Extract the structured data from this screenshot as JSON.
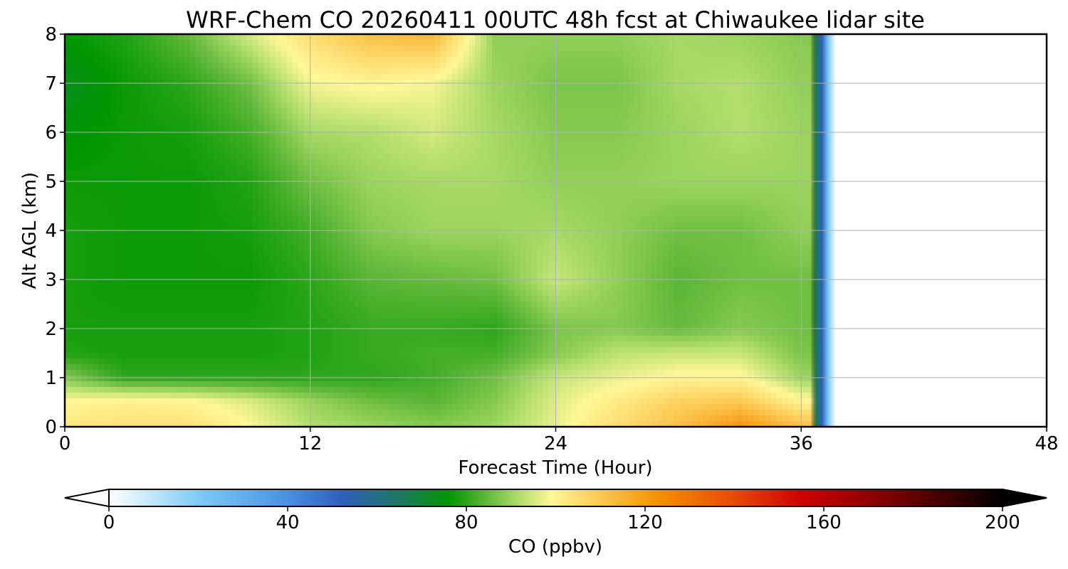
{
  "chart_data": {
    "type": "heatmap",
    "title": "WRF-Chem CO  20260411 00UTC 48h fcst at Chiwaukee lidar site",
    "xlabel": "Forecast Time (Hour)",
    "ylabel": "Alt AGL (km)",
    "xlim": [
      0,
      48
    ],
    "ylim": [
      0,
      8
    ],
    "xticks": [
      "0",
      "12",
      "24",
      "36",
      "48"
    ],
    "yticks": [
      "0",
      "1",
      "2",
      "3",
      "4",
      "5",
      "6",
      "7",
      "8"
    ],
    "grid": true,
    "data_end_hour": 36.8,
    "x_hours": [
      0,
      3,
      6,
      9,
      12,
      15,
      18,
      21,
      24,
      27,
      30,
      33,
      36
    ],
    "z_km": [
      0,
      0.5,
      1,
      1.5,
      2,
      3,
      4,
      5,
      6,
      7,
      8
    ],
    "co_ppbv": [
      [
        103,
        104,
        104,
        99,
        92,
        90,
        88,
        90,
        97,
        105,
        112,
        122,
        112
      ],
      [
        99,
        101,
        100,
        96,
        90,
        86,
        84,
        88,
        96,
        102,
        108,
        110,
        100
      ],
      [
        88,
        80,
        80,
        80,
        80,
        80,
        82,
        86,
        94,
        97,
        100,
        100,
        90
      ],
      [
        79,
        78,
        78,
        78,
        79,
        81,
        82,
        82,
        88,
        93,
        94,
        94,
        87
      ],
      [
        78,
        78,
        78,
        78,
        79,
        81,
        81,
        80,
        87,
        88,
        85,
        88,
        86
      ],
      [
        78,
        77,
        77,
        77,
        80,
        84,
        85,
        86,
        94,
        89,
        84,
        86,
        86
      ],
      [
        78,
        77,
        77,
        78,
        82,
        88,
        90,
        90,
        91,
        89,
        86,
        86,
        89
      ],
      [
        77,
        77,
        77,
        79,
        86,
        90,
        91,
        91,
        89,
        89,
        90,
        90,
        90
      ],
      [
        75,
        77,
        78,
        82,
        91,
        92,
        95,
        91,
        88,
        88,
        90,
        92,
        90
      ],
      [
        73,
        77,
        80,
        86,
        98,
        100,
        98,
        90,
        87,
        87,
        91,
        92,
        89
      ],
      [
        76,
        79,
        85,
        95,
        105,
        112,
        114,
        89,
        89,
        89,
        91,
        90,
        88
      ]
    ],
    "colorbar": {
      "label": "CO  (ppbv)",
      "min": 0,
      "max": 200,
      "ticks": [
        "0",
        "40",
        "80",
        "120",
        "160",
        "200"
      ],
      "extend": "both",
      "stops": [
        {
          "v": 0,
          "c": "#ffffff"
        },
        {
          "v": 20,
          "c": "#7ecbf6"
        },
        {
          "v": 40,
          "c": "#4a90e2"
        },
        {
          "v": 52,
          "c": "#2f5fbd"
        },
        {
          "v": 66,
          "c": "#1b7a5b"
        },
        {
          "v": 76,
          "c": "#009600"
        },
        {
          "v": 84,
          "c": "#5ab537"
        },
        {
          "v": 92,
          "c": "#b2de6e"
        },
        {
          "v": 99,
          "c": "#fff798"
        },
        {
          "v": 110,
          "c": "#fcc851"
        },
        {
          "v": 124,
          "c": "#f68c00"
        },
        {
          "v": 140,
          "c": "#e74a05"
        },
        {
          "v": 155,
          "c": "#cf0000"
        },
        {
          "v": 175,
          "c": "#7a0000"
        },
        {
          "v": 200,
          "c": "#000000"
        }
      ]
    }
  }
}
